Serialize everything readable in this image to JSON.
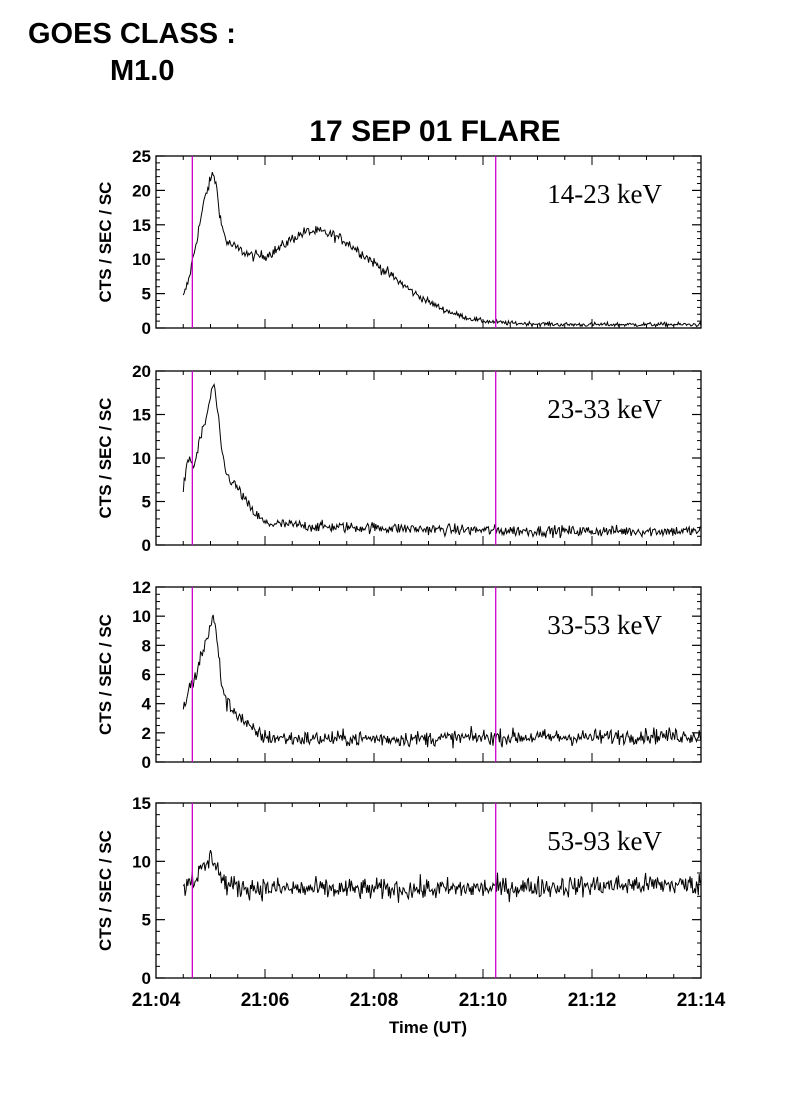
{
  "header": {
    "goes_label": "GOES CLASS :",
    "goes_class": "M1.0"
  },
  "chart_data": {
    "type": "line",
    "title": "17 SEP 01 FLARE",
    "xlabel": "Time (UT)",
    "x_ticks": [
      "21:04",
      "21:06",
      "21:08",
      "21:10",
      "21:12",
      "21:14"
    ],
    "xlim": [
      "21:04",
      "21:14"
    ],
    "grid": false,
    "colors": {
      "trace": "#000000",
      "marker": "#cc00cc",
      "axes": "#000000"
    },
    "markers": [
      {
        "time": "21:04:40"
      },
      {
        "time": "21:10:14"
      }
    ],
    "panels": [
      {
        "band": "14-23 keV",
        "ylabel": "CTS / SEC / SC",
        "ylim": [
          0,
          25
        ],
        "yticks": [
          "0",
          "5",
          "10",
          "15",
          "20",
          "25"
        ],
        "series": {
          "t": [
            "21:04:30",
            "21:04:36",
            "21:04:42",
            "21:04:48",
            "21:04:54",
            "21:05:00",
            "21:05:03",
            "21:05:06",
            "21:05:12",
            "21:05:18",
            "21:05:30",
            "21:05:45",
            "21:06:00",
            "21:06:15",
            "21:06:30",
            "21:06:45",
            "21:07:00",
            "21:07:15",
            "21:07:30",
            "21:07:45",
            "21:08:00",
            "21:08:15",
            "21:08:30",
            "21:08:45",
            "21:09:00",
            "21:09:15",
            "21:09:30",
            "21:09:45",
            "21:10:00",
            "21:10:30",
            "21:11:00",
            "21:11:30",
            "21:12:00",
            "21:12:30",
            "21:13:00",
            "21:13:30",
            "21:14:00"
          ],
          "y": [
            4.5,
            7,
            11,
            15,
            19,
            21.5,
            22.5,
            21,
            15,
            12.5,
            11.5,
            10.5,
            10.5,
            11.5,
            13,
            14,
            14,
            13.5,
            12.5,
            11,
            9.5,
            8,
            6.5,
            5,
            3.8,
            2.8,
            2,
            1.4,
            1,
            0.7,
            0.6,
            0.5,
            0.5,
            0.5,
            0.5,
            0.5,
            0.5
          ]
        }
      },
      {
        "band": "23-33 keV",
        "ylabel": "CTS / SEC / SC",
        "ylim": [
          0,
          20
        ],
        "yticks": [
          "0",
          "5",
          "10",
          "15",
          "20"
        ],
        "series": {
          "t": [
            "21:04:30",
            "21:04:36",
            "21:04:42",
            "21:04:48",
            "21:04:54",
            "21:05:00",
            "21:05:03",
            "21:05:06",
            "21:05:12",
            "21:05:18",
            "21:05:30",
            "21:05:45",
            "21:06:00",
            "21:06:30",
            "21:07:00",
            "21:08:00",
            "21:09:00",
            "21:10:00",
            "21:11:00",
            "21:12:00",
            "21:13:00",
            "21:14:00"
          ],
          "y": [
            6.5,
            10,
            9,
            12,
            14,
            17,
            18.5,
            17,
            11,
            8,
            6.5,
            4,
            2.5,
            2.3,
            2.1,
            2,
            1.8,
            1.7,
            1.6,
            1.6,
            1.6,
            1.6
          ]
        }
      },
      {
        "band": "33-53 keV",
        "ylabel": "CTS / SEC / SC",
        "ylim": [
          0,
          12
        ],
        "yticks": [
          "0",
          "2",
          "4",
          "6",
          "8",
          "10",
          "12"
        ],
        "series": {
          "t": [
            "21:04:30",
            "21:04:36",
            "21:04:42",
            "21:04:48",
            "21:04:54",
            "21:05:00",
            "21:05:03",
            "21:05:06",
            "21:05:12",
            "21:05:18",
            "21:05:30",
            "21:05:45",
            "21:06:00",
            "21:06:30",
            "21:07:00",
            "21:08:00",
            "21:09:00",
            "21:10:00",
            "21:11:00",
            "21:12:00",
            "21:13:00",
            "21:14:00"
          ],
          "y": [
            3.5,
            5,
            5.5,
            7,
            8,
            9.5,
            9.8,
            9,
            5.5,
            4,
            3.3,
            2.2,
            1.7,
            1.6,
            1.6,
            1.6,
            1.6,
            1.7,
            1.7,
            1.7,
            1.8,
            1.8
          ]
        }
      },
      {
        "band": "53-93 keV",
        "ylabel": "CTS / SEC / SC",
        "ylim": [
          0,
          15
        ],
        "yticks": [
          "0",
          "5",
          "10",
          "15"
        ],
        "series": {
          "t": [
            "21:04:30",
            "21:04:36",
            "21:04:42",
            "21:04:48",
            "21:04:54",
            "21:05:00",
            "21:05:06",
            "21:05:12",
            "21:05:18",
            "21:05:30",
            "21:06:00",
            "21:07:00",
            "21:08:00",
            "21:09:00",
            "21:10:00",
            "21:11:00",
            "21:12:00",
            "21:13:00",
            "21:14:00"
          ],
          "y": [
            7.5,
            8.5,
            8.5,
            9,
            9.5,
            10.3,
            10,
            8.5,
            8,
            7.8,
            7.7,
            7.6,
            7.6,
            7.6,
            7.7,
            7.8,
            7.9,
            8,
            8
          ]
        }
      }
    ]
  }
}
